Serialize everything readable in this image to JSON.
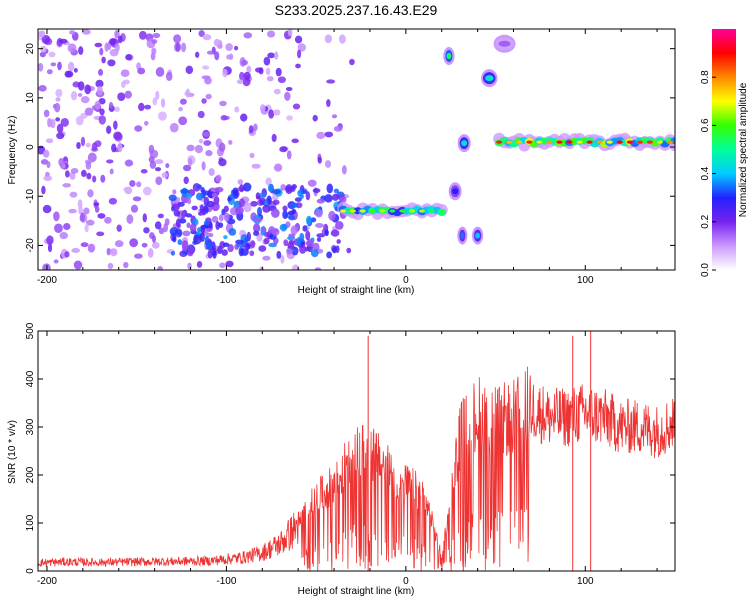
{
  "figure": {
    "title": "S233.2025.237.16.43.E29"
  },
  "chart_data": [
    {
      "type": "heatmap",
      "xlabel": "Height of straight line (km)",
      "ylabel": "Frequency (Hz)",
      "xlim": [
        -205,
        150
      ],
      "ylim": [
        -25,
        24
      ],
      "xticks": [
        -200,
        -100,
        0,
        100
      ],
      "yticks": [
        20,
        10,
        0,
        -10,
        -20
      ],
      "colorbar": {
        "label": "Normalized spectral amplitude",
        "range": [
          0,
          1
        ],
        "ticks": [
          0.0,
          0.2,
          0.4,
          0.6,
          0.8
        ],
        "colors": [
          "#ffffff",
          "#cc99ff",
          "#7722ee",
          "#2222ff",
          "#00ccff",
          "#00ff99",
          "#33ff00",
          "#ffff00",
          "#ff8800",
          "#ff0000",
          "#ff0099"
        ]
      },
      "features": [
        {
          "x_range": [
            -205,
            -30
          ],
          "freq_range": [
            -25,
            24
          ],
          "amplitude": 0.15,
          "kind": "background-noise"
        },
        {
          "x_range": [
            -130,
            -35
          ],
          "freq_range": [
            -22,
            -8
          ],
          "amplitude": 0.25,
          "kind": "cluster"
        },
        {
          "x_range": [
            -35,
            20
          ],
          "freq": -13,
          "amplitude": 0.6,
          "kind": "track"
        },
        {
          "x_range": [
            22,
            26
          ],
          "freq": 18.5,
          "amplitude": 0.55,
          "kind": "blob"
        },
        {
          "x_range": [
            25,
            30
          ],
          "freq": -9,
          "amplitude": 0.3,
          "kind": "blob"
        },
        {
          "x_range": [
            30,
            35
          ],
          "freq": 0.8,
          "amplitude": 0.45,
          "kind": "blob"
        },
        {
          "x_range": [
            30,
            33
          ],
          "freq": -18,
          "amplitude": 0.35,
          "kind": "blob"
        },
        {
          "x_range": [
            38,
            42
          ],
          "freq": -18,
          "amplitude": 0.4,
          "kind": "blob"
        },
        {
          "x_range": [
            43,
            50
          ],
          "freq": 14,
          "amplitude": 0.45,
          "kind": "blob"
        },
        {
          "x_range": [
            50,
            60
          ],
          "freq": 21,
          "amplitude": 0.15,
          "kind": "blob"
        },
        {
          "x_range": [
            52,
            150
          ],
          "freq": 1,
          "amplitude": 0.75,
          "kind": "track"
        }
      ]
    },
    {
      "type": "line",
      "xlabel": "Height of straight line (km)",
      "ylabel": "SNR (10 * v/v)",
      "xlim": [
        -205,
        150
      ],
      "ylim": [
        0,
        500
      ],
      "xticks": [
        -200,
        -100,
        0,
        100
      ],
      "yticks": [
        0,
        100,
        200,
        300,
        400,
        500
      ],
      "series": [
        {
          "color": "#ee3333",
          "x": [
            -205,
            -190,
            -170,
            -150,
            -130,
            -110,
            -90,
            -80,
            -70,
            -60,
            -50,
            -40,
            -30,
            -20,
            -10,
            0,
            10,
            20,
            30,
            40,
            50,
            60,
            70,
            80,
            90,
            100,
            110,
            120,
            130,
            140,
            150
          ],
          "y": [
            18,
            20,
            19,
            20,
            21,
            22,
            30,
            40,
            60,
            100,
            150,
            180,
            240,
            250,
            210,
            180,
            160,
            30,
            280,
            330,
            310,
            320,
            350,
            330,
            330,
            340,
            330,
            310,
            310,
            300,
            320
          ],
          "peaks": [
            [
              -21,
              490
            ],
            [
              93,
              490
            ],
            [
              103,
              500
            ],
            [
              32,
              360
            ]
          ]
        }
      ]
    }
  ]
}
